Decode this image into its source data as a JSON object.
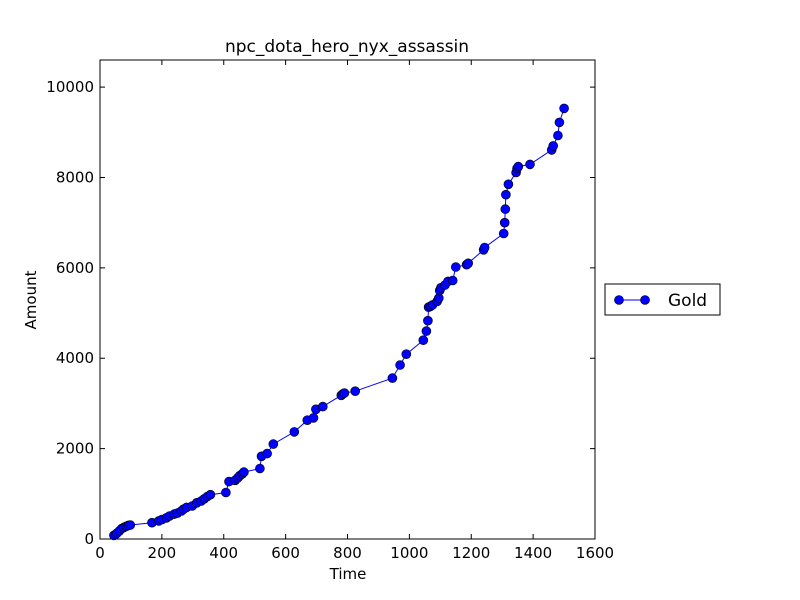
{
  "chart_data": {
    "type": "line",
    "title": "npc_dota_hero_nyx_assassin",
    "xlabel": "Time",
    "ylabel": "Amount",
    "xlim": [
      0,
      1600
    ],
    "ylim": [
      0,
      10600
    ],
    "xticks": [
      0,
      200,
      400,
      600,
      800,
      1000,
      1200,
      1400,
      1600
    ],
    "yticks": [
      0,
      2000,
      4000,
      6000,
      8000,
      10000
    ],
    "xtick_labels": [
      "0",
      "200",
      "400",
      "600",
      "800",
      "1000",
      "1200",
      "1400",
      "1600"
    ],
    "ytick_labels": [
      "0",
      "2000",
      "4000",
      "6000",
      "8000",
      "10000"
    ],
    "grid": false,
    "legend_placement": "outside-right",
    "series": [
      {
        "name": "Gold",
        "color": "#0000ff",
        "marker": "circle",
        "x": [
          45,
          50,
          55,
          63,
          70,
          78,
          85,
          92,
          98,
          168,
          190,
          200,
          215,
          225,
          240,
          250,
          263,
          270,
          280,
          298,
          313,
          327,
          337,
          347,
          357,
          407,
          417,
          437,
          445,
          452,
          460,
          465,
          517,
          522,
          540,
          560,
          628,
          670,
          690,
          698,
          720,
          780,
          785,
          790,
          825,
          945,
          970,
          990,
          1045,
          1055,
          1060,
          1062,
          1068,
          1075,
          1090,
          1095,
          1098,
          1102,
          1115,
          1125,
          1140,
          1150,
          1185,
          1190,
          1240,
          1243,
          1305,
          1308,
          1310,
          1312,
          1320,
          1345,
          1348,
          1352,
          1390,
          1460,
          1465,
          1480,
          1485,
          1500
        ],
        "y": [
          80,
          100,
          130,
          180,
          230,
          260,
          280,
          300,
          310,
          360,
          400,
          430,
          470,
          510,
          550,
          570,
          620,
          660,
          700,
          730,
          800,
          840,
          890,
          940,
          980,
          1030,
          1270,
          1300,
          1350,
          1400,
          1440,
          1480,
          1560,
          1830,
          1890,
          2100,
          2370,
          2630,
          2680,
          2870,
          2930,
          3180,
          3210,
          3230,
          3270,
          3560,
          3850,
          4090,
          4400,
          4600,
          4830,
          5130,
          5150,
          5180,
          5260,
          5330,
          5500,
          5560,
          5620,
          5700,
          5720,
          6020,
          6070,
          6100,
          6400,
          6450,
          6760,
          7000,
          7300,
          7620,
          7850,
          8110,
          8200,
          8240,
          8290,
          8610,
          8700,
          8930,
          9220,
          9530
        ]
      }
    ]
  }
}
